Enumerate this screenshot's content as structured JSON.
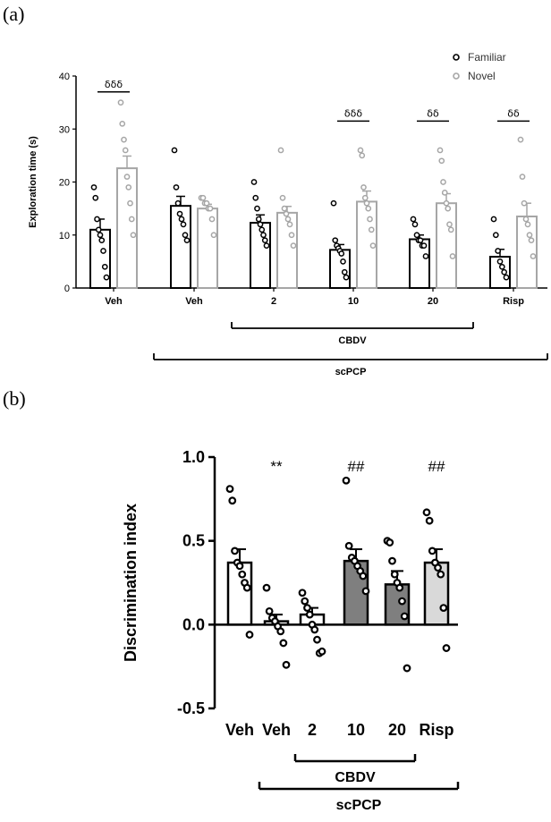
{
  "panel_a_label": "(a)",
  "panel_b_label": "(b)",
  "chart_data": [
    {
      "type": "bar",
      "ylabel": "Exploration time (s)",
      "ylim": [
        0,
        40
      ],
      "yticks": [
        "0",
        "10",
        "20",
        "30",
        "40"
      ],
      "categories": [
        "Veh",
        "Veh",
        "2",
        "10",
        "20",
        "Risp"
      ],
      "series": [
        {
          "name": "Familiar",
          "color": "#000000",
          "values": [
            11.0,
            15.5,
            12.3,
            7.2,
            9.2,
            5.9
          ],
          "sem": [
            2.0,
            1.8,
            1.5,
            1.0,
            0.8,
            1.4
          ],
          "points": [
            [
              19,
              17,
              13,
              11,
              10,
              9,
              7,
              4,
              2
            ],
            [
              26,
              19,
              16,
              14,
              13,
              12,
              10,
              9
            ],
            [
              20,
              17,
              15,
              13,
              12,
              11,
              10,
              9,
              8
            ],
            [
              16,
              9,
              8,
              7.5,
              7,
              6.5,
              5,
              3,
              2
            ],
            [
              13,
              12,
              10,
              9,
              9,
              8,
              8,
              6
            ],
            [
              13,
              10,
              7,
              5,
              4,
              3,
              2
            ]
          ]
        },
        {
          "name": "Novel",
          "color": "#a6a6a6",
          "values": [
            22.6,
            15.0,
            14.2,
            16.3,
            16.0,
            13.5
          ],
          "sem": [
            2.3,
            0.8,
            1.2,
            2.0,
            1.8,
            2.5
          ],
          "points": [
            [
              35,
              31,
              28,
              26,
              21,
              19,
              16,
              13,
              10
            ],
            [
              17,
              17,
              16,
              16,
              15,
              15,
              13,
              10
            ],
            [
              26,
              17,
              15,
              14,
              13,
              12,
              10,
              8
            ],
            [
              26,
              25,
              19,
              17,
              16,
              15,
              13,
              11,
              8
            ],
            [
              26,
              24,
              20,
              18,
              16,
              15,
              12,
              11,
              6
            ],
            [
              28,
              21,
              16,
              13,
              12,
              10,
              9,
              6
            ]
          ]
        }
      ],
      "significance": [
        "δδδ",
        "",
        "",
        "δδδ",
        "δδ",
        "δδ"
      ],
      "groups": [
        {
          "label": "CBDV",
          "from": 2,
          "to": 4
        },
        {
          "label": "scPCP",
          "from": 1,
          "to": 5
        }
      ]
    },
    {
      "type": "bar",
      "ylabel": "Discrimination index",
      "ylim": [
        -0.5,
        1.0
      ],
      "yticks": [
        "-0.5",
        "0.0",
        "0.5",
        "1.0"
      ],
      "categories": [
        "Veh",
        "Veh",
        "2",
        "10",
        "20",
        "Risp"
      ],
      "values": [
        0.37,
        0.02,
        0.06,
        0.38,
        0.24,
        0.37
      ],
      "sem": [
        0.08,
        0.04,
        0.04,
        0.07,
        0.08,
        0.08
      ],
      "bar_colors": [
        "#ffffff",
        "#ffffff",
        "#ffffff",
        "#7f7f7f",
        "#7f7f7f",
        "#d9d9d9"
      ],
      "points": [
        [
          0.81,
          0.74,
          0.44,
          0.37,
          0.35,
          0.3,
          0.25,
          0.22,
          -0.06
        ],
        [
          0.22,
          0.08,
          0.04,
          0.02,
          -0.01,
          -0.04,
          -0.11,
          -0.24
        ],
        [
          0.19,
          0.14,
          0.1,
          0.06,
          0.0,
          -0.03,
          -0.09,
          -0.17,
          -0.16
        ],
        [
          0.86,
          0.47,
          0.4,
          0.38,
          0.35,
          0.32,
          0.29,
          0.2
        ],
        [
          0.5,
          0.49,
          0.38,
          0.3,
          0.25,
          0.22,
          0.14,
          0.05,
          -0.26
        ],
        [
          0.67,
          0.62,
          0.44,
          0.37,
          0.34,
          0.3,
          0.1,
          -0.14
        ]
      ],
      "significance": [
        "",
        "**",
        "",
        "##",
        "",
        "##"
      ],
      "groups": [
        {
          "label": "CBDV",
          "from": 2,
          "to": 4
        },
        {
          "label": "scPCP",
          "from": 1,
          "to": 5
        }
      ]
    }
  ]
}
